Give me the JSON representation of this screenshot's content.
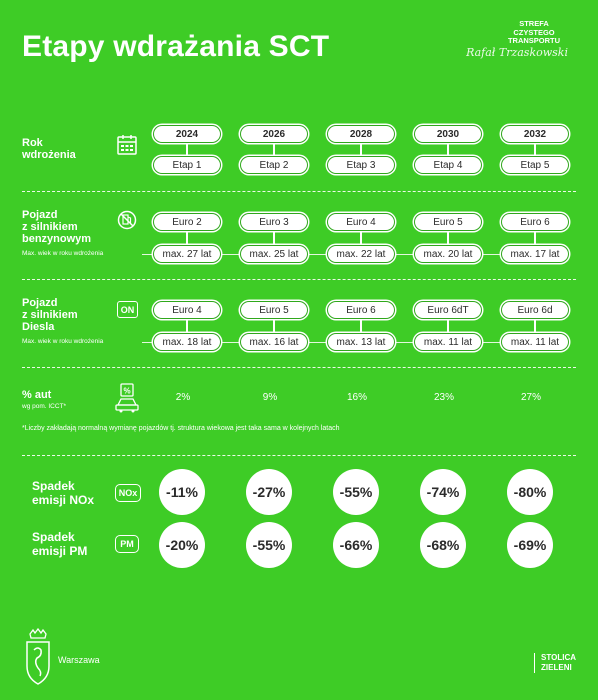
{
  "title": "Etapy wdrażania SCT",
  "brand": {
    "line1": "STREFA",
    "line2": "CZYSTEGO",
    "line3": "TRANSPORTU",
    "signature": "Rafał Trzaskowski"
  },
  "rows": {
    "year": {
      "label1": "Rok",
      "label2": "wdrożenia",
      "years": [
        "2024",
        "2026",
        "2028",
        "2030",
        "2032"
      ],
      "stages": [
        "Etap 1",
        "Etap 2",
        "Etap 3",
        "Etap 4",
        "Etap 5"
      ]
    },
    "petrol": {
      "label1": "Pojazd",
      "label2": "z silnikiem",
      "label3": "benzynowym",
      "sub": "Max. wiek w roku wdrożenia",
      "euro": [
        "Euro 2",
        "Euro 3",
        "Euro 4",
        "Euro 5",
        "Euro 6"
      ],
      "age": [
        "max. 27 lat",
        "max. 25 lat",
        "max. 22 lat",
        "max. 20 lat",
        "max. 17 lat"
      ],
      "icon": "no-petrol-pump-icon"
    },
    "diesel": {
      "label1": "Pojazd",
      "label2": "z silnikiem",
      "label3": "Diesla",
      "sub": "Max. wiek w roku wdrożenia",
      "badge": "ON",
      "euro": [
        "Euro 4",
        "Euro 5",
        "Euro 6",
        "Euro 6dT",
        "Euro 6d"
      ],
      "age": [
        "max. 18 lat",
        "max. 16 lat",
        "max. 13 lat",
        "max. 11 lat",
        "max. 11 lat"
      ]
    },
    "cars": {
      "label1": "% aut",
      "label2": "wg pom. ICCT*",
      "values": [
        "2%",
        "9%",
        "16%",
        "23%",
        "27%"
      ],
      "icon": "car-percent-icon"
    }
  },
  "note": "*Liczby zakładają normalną wymianę pojazdów tj. struktura wiekowa jest taka sama w kolejnych latach",
  "nox": {
    "label1": "Spadek",
    "label2": "emisji NOx",
    "badge": "NOx",
    "values": [
      "-11%",
      "-27%",
      "-55%",
      "-74%",
      "-80%"
    ]
  },
  "pm": {
    "label1": "Spadek",
    "label2": "emisji PM",
    "badge": "PM",
    "values": [
      "-20%",
      "-55%",
      "-66%",
      "-68%",
      "-69%"
    ]
  },
  "footer": {
    "city": "Warszawa",
    "tag1": "STOLICA",
    "tag2": "ZIELENI"
  }
}
